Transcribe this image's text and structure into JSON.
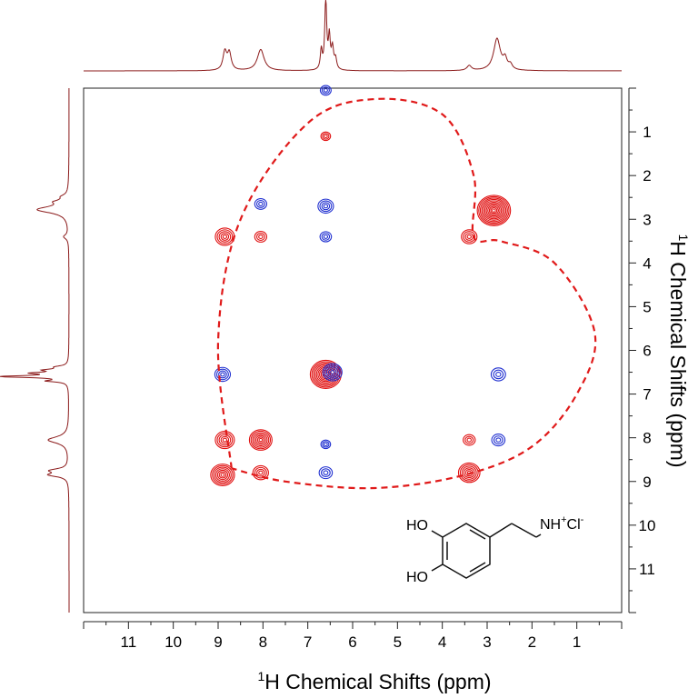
{
  "chart_data": {
    "type": "heatmap",
    "subtype": "2D 1H-1H NMR correlation spectrum (contour plot) with 1D projections",
    "xlabel": {
      "sup": "1",
      "text": "H Chemical Shifts (ppm)"
    },
    "ylabel": {
      "sup": "1",
      "text": "H Chemical Shifts (ppm)"
    },
    "x_axis": {
      "range": [
        12,
        0
      ],
      "reversed": true,
      "ticks": [
        11,
        10,
        9,
        8,
        7,
        6,
        5,
        4,
        3,
        2,
        1
      ]
    },
    "y_axis": {
      "range": [
        0,
        12
      ],
      "reversed": true,
      "position": "right",
      "ticks": [
        1,
        2,
        3,
        4,
        5,
        6,
        7,
        8,
        9,
        10,
        11
      ]
    },
    "grid": false,
    "colors": {
      "positive": "#e01010",
      "negative": "#1f2fd0",
      "projection": "#8b1a1a",
      "outline": "#e01a1a"
    },
    "projection_peaks": [
      {
        "ppm": 8.85,
        "height": 0.26,
        "width": 0.05
      },
      {
        "ppm": 8.75,
        "height": 0.24,
        "width": 0.05
      },
      {
        "ppm": 8.05,
        "height": 0.3,
        "width": 0.09
      },
      {
        "ppm": 6.7,
        "height": 0.28,
        "width": 0.025
      },
      {
        "ppm": 6.6,
        "height": 1.0,
        "width": 0.025
      },
      {
        "ppm": 6.52,
        "height": 0.45,
        "width": 0.025
      },
      {
        "ppm": 6.45,
        "height": 0.3,
        "width": 0.03
      },
      {
        "ppm": 6.38,
        "height": 0.15,
        "width": 0.03
      },
      {
        "ppm": 3.4,
        "height": 0.07,
        "width": 0.06
      },
      {
        "ppm": 2.78,
        "height": 0.45,
        "width": 0.09
      },
      {
        "ppm": 2.6,
        "height": 0.14,
        "width": 0.05
      },
      {
        "ppm": 2.48,
        "height": 0.07,
        "width": 0.05
      }
    ],
    "cross_peaks": [
      {
        "x": 8.85,
        "y": 3.4,
        "sign": "positive",
        "size": 1.0
      },
      {
        "x": 3.4,
        "y": 3.4,
        "sign": "positive",
        "size": 0.7
      },
      {
        "x": 2.85,
        "y": 2.8,
        "sign": "positive",
        "size": 2.2
      },
      {
        "x": 8.05,
        "y": 2.65,
        "sign": "negative",
        "size": 0.4
      },
      {
        "x": 6.6,
        "y": 2.7,
        "sign": "negative",
        "size": 0.7
      },
      {
        "x": 6.6,
        "y": 3.4,
        "sign": "negative",
        "size": 0.35
      },
      {
        "x": 8.05,
        "y": 3.4,
        "sign": "positive",
        "size": 0.4
      },
      {
        "x": 6.6,
        "y": 1.1,
        "sign": "positive",
        "size": 0.2
      },
      {
        "x": 6.6,
        "y": 0.05,
        "sign": "negative",
        "size": 0.3
      },
      {
        "x": 6.6,
        "y": 6.55,
        "sign": "positive",
        "size": 2.0
      },
      {
        "x": 6.45,
        "y": 6.5,
        "sign": "negative",
        "size": 1.0
      },
      {
        "x": 8.9,
        "y": 6.55,
        "sign": "negative",
        "size": 0.7
      },
      {
        "x": 2.75,
        "y": 6.55,
        "sign": "negative",
        "size": 0.6
      },
      {
        "x": 8.85,
        "y": 8.05,
        "sign": "positive",
        "size": 1.0
      },
      {
        "x": 8.05,
        "y": 8.05,
        "sign": "positive",
        "size": 1.3
      },
      {
        "x": 6.6,
        "y": 8.15,
        "sign": "negative",
        "size": 0.2
      },
      {
        "x": 3.4,
        "y": 8.05,
        "sign": "positive",
        "size": 0.4
      },
      {
        "x": 2.75,
        "y": 8.05,
        "sign": "negative",
        "size": 0.5
      },
      {
        "x": 8.9,
        "y": 8.85,
        "sign": "positive",
        "size": 1.4
      },
      {
        "x": 8.05,
        "y": 8.8,
        "sign": "positive",
        "size": 0.7
      },
      {
        "x": 6.6,
        "y": 8.8,
        "sign": "negative",
        "size": 0.5
      },
      {
        "x": 3.4,
        "y": 8.8,
        "sign": "positive",
        "size": 1.2
      }
    ],
    "heart_outline": {
      "style": "dashed",
      "points": [
        [
          8.7,
          8.7
        ],
        [
          9.0,
          5.8
        ],
        [
          8.5,
          3.0
        ],
        [
          7.0,
          0.8
        ],
        [
          5.5,
          0.25
        ],
        [
          4.0,
          0.6
        ],
        [
          3.3,
          2.0
        ],
        [
          3.3,
          3.4
        ],
        [
          2.7,
          3.5
        ],
        [
          1.5,
          4.0
        ],
        [
          0.6,
          5.6
        ],
        [
          1.0,
          7.0
        ],
        [
          2.0,
          8.2
        ],
        [
          3.5,
          8.85
        ],
        [
          5.5,
          9.15
        ],
        [
          7.5,
          9.0
        ],
        [
          8.7,
          8.7
        ]
      ]
    },
    "structure_labels": {
      "ho1": "HO",
      "ho2": "HO",
      "amine": "NH",
      "amine_charge": "+",
      "counter_ion": "Cl",
      "counter_charge": "-"
    }
  }
}
